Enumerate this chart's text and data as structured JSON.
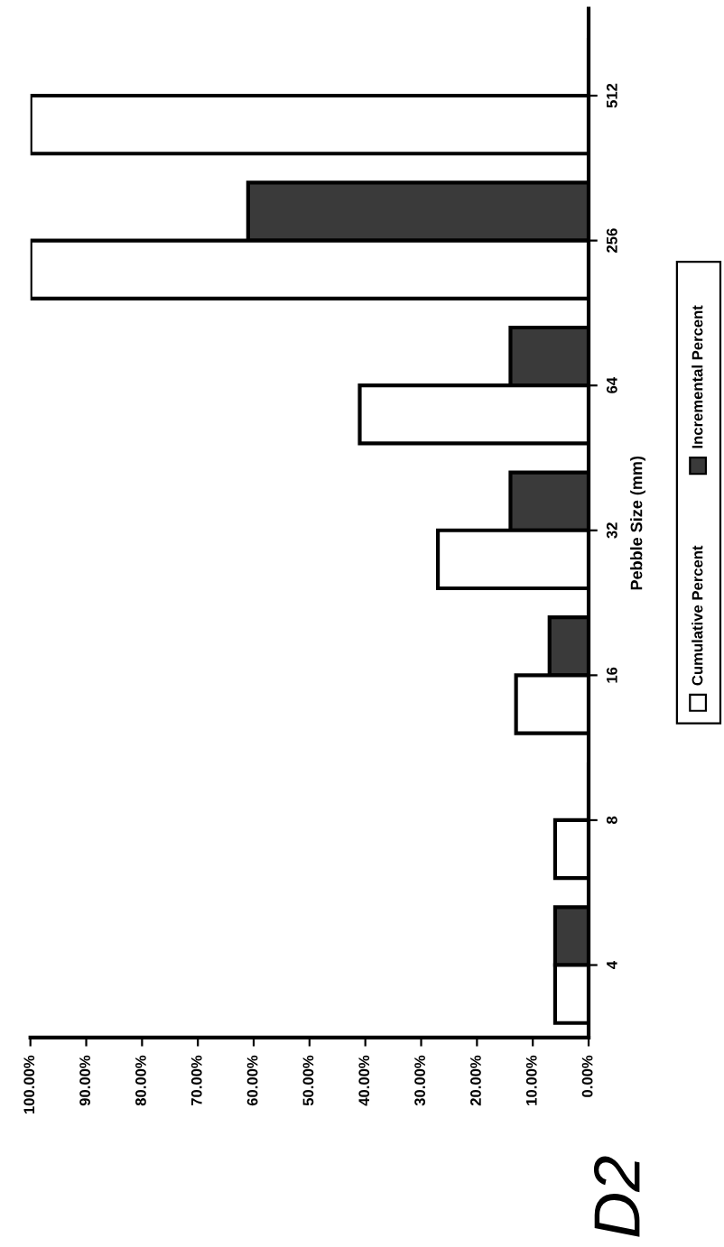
{
  "chart_data": {
    "type": "bar",
    "orientation": "horizontal",
    "categories": [
      "512",
      "256",
      "64",
      "32",
      "16",
      "8",
      "4"
    ],
    "ylabel": "Pebble Size (mm)",
    "series": [
      {
        "name": "Incremental Percent",
        "color": "#3a3a3a",
        "values": [
          0,
          61,
          14,
          14,
          7,
          0,
          6
        ]
      },
      {
        "name": "Cumulative Percent",
        "color": "#ffffff",
        "values": [
          100,
          100,
          41,
          27,
          13,
          6,
          6
        ]
      }
    ],
    "xlim": [
      100,
      0
    ],
    "xticks": [
      {
        "value": 100,
        "label": "100.00%"
      },
      {
        "value": 90,
        "label": "90.00%"
      },
      {
        "value": 80,
        "label": "80.00%"
      },
      {
        "value": 70,
        "label": "70.00%"
      },
      {
        "value": 60,
        "label": "60.00%"
      },
      {
        "value": 50,
        "label": "50.00%"
      },
      {
        "value": 40,
        "label": "40.00%"
      },
      {
        "value": 30,
        "label": "30.00%"
      },
      {
        "value": 20,
        "label": "20.00%"
      },
      {
        "value": 10,
        "label": "10.00%"
      },
      {
        "value": 0,
        "label": "0.00%"
      }
    ],
    "annotations": [
      "D2"
    ],
    "legend": "right",
    "grid": false
  }
}
